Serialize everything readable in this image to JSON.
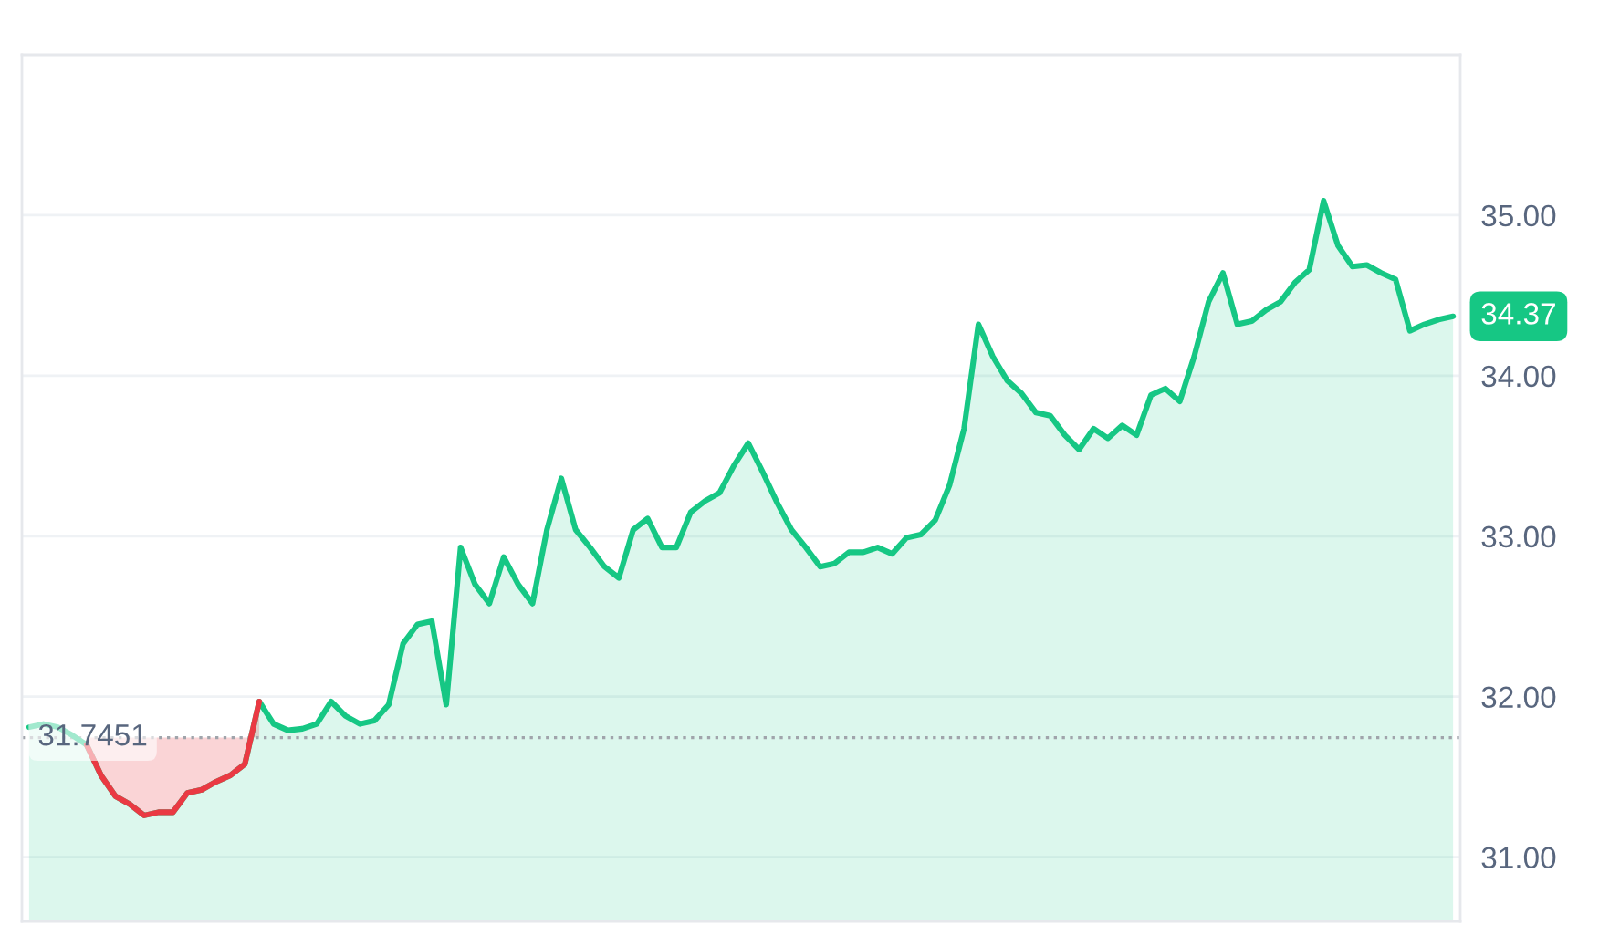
{
  "chart_data": {
    "type": "area",
    "categories": [
      null,
      null,
      null,
      null,
      null,
      null,
      null,
      null,
      null,
      null,
      null,
      null,
      null,
      null,
      null,
      null,
      null,
      null,
      null,
      null,
      null,
      null,
      null,
      null,
      null,
      null,
      null,
      null,
      null,
      null,
      null,
      null,
      null,
      null,
      null,
      null,
      null,
      null,
      null,
      null,
      null,
      null,
      null,
      null,
      null,
      null,
      null,
      null,
      null,
      null,
      null,
      null,
      null,
      null,
      null,
      null,
      null,
      null,
      null,
      null,
      null,
      null,
      null,
      null,
      null,
      null,
      null,
      null,
      null,
      null,
      null,
      null,
      null,
      null,
      null,
      null,
      null,
      null,
      null,
      null,
      null,
      null,
      null,
      null,
      null,
      null,
      null,
      null,
      null,
      null,
      null,
      null,
      null,
      null,
      null,
      null,
      null,
      null,
      null,
      null
    ],
    "series": [
      {
        "color": "#16c784",
        "values": [
          31.81,
          31.83,
          31.81,
          31.76,
          31.7,
          31.51,
          31.38,
          31.33,
          31.26,
          31.28,
          31.28,
          31.4,
          31.42,
          31.47,
          31.51,
          31.58,
          31.97,
          31.83,
          31.79,
          31.8,
          31.83,
          31.97,
          31.88,
          31.83,
          31.85,
          31.95,
          32.33,
          32.45,
          32.47,
          31.95,
          32.93,
          32.7,
          32.58,
          32.87,
          32.7,
          32.58,
          33.04,
          33.36,
          33.04,
          32.93,
          32.81,
          32.74,
          33.04,
          33.11,
          32.93,
          32.93,
          33.15,
          33.22,
          33.27,
          33.44,
          33.58,
          33.4,
          33.21,
          33.04,
          32.93,
          32.81,
          32.83,
          32.9,
          32.9,
          32.93,
          32.89,
          32.99,
          33.01,
          33.1,
          33.32,
          33.67,
          34.32,
          34.12,
          33.97,
          33.89,
          33.77,
          33.75,
          33.63,
          33.54,
          33.67,
          33.61,
          33.69,
          33.63,
          33.88,
          33.92,
          33.84,
          34.12,
          34.46,
          34.64,
          34.32,
          34.34,
          34.41,
          34.46,
          34.58,
          34.66,
          35.09,
          34.81,
          34.68,
          34.69,
          34.64,
          34.6,
          34.28,
          34.32,
          34.35,
          34.37
        ]
      },
      {
        "type": "line",
        "color": "#ea3943",
        "values": [
          null,
          null,
          null,
          null,
          31.7,
          31.51,
          31.38,
          31.33,
          31.26,
          31.28,
          31.28,
          31.4,
          31.42,
          31.47,
          31.51,
          31.58,
          31.97,
          null,
          null,
          null,
          null,
          null,
          null,
          null,
          null,
          null,
          null,
          null,
          null,
          null,
          null,
          null,
          null,
          null,
          null,
          null,
          null,
          null,
          null,
          null,
          null,
          null,
          null,
          null,
          null,
          null,
          null,
          null,
          null,
          null,
          null,
          null,
          null,
          null,
          null,
          null,
          null,
          null,
          null,
          null,
          null,
          null,
          null,
          null,
          null,
          null,
          null,
          null,
          null,
          null,
          null,
          null,
          null,
          null,
          null,
          null,
          null,
          null,
          null,
          null,
          null,
          null,
          null,
          null,
          null,
          null,
          null,
          null,
          null,
          null,
          null,
          null,
          null,
          null,
          null,
          null,
          null,
          null,
          null,
          null
        ]
      }
    ],
    "ylim": [
      30.6,
      36.0
    ],
    "yticks": [
      {
        "value": 31,
        "label": "31.00"
      },
      {
        "value": 32,
        "label": "32.00"
      },
      {
        "value": 33,
        "label": "33.00"
      },
      {
        "value": 34,
        "label": "34.00"
      },
      {
        "value": 35,
        "label": "35.00"
      }
    ],
    "grid": "y",
    "ref_lines": [
      {
        "axis": "y",
        "value": 31.7451,
        "label": "31.7451",
        "color": "#a0a4ab",
        "line_style": "dotted"
      }
    ],
    "annotations": [
      "34.37"
    ]
  }
}
